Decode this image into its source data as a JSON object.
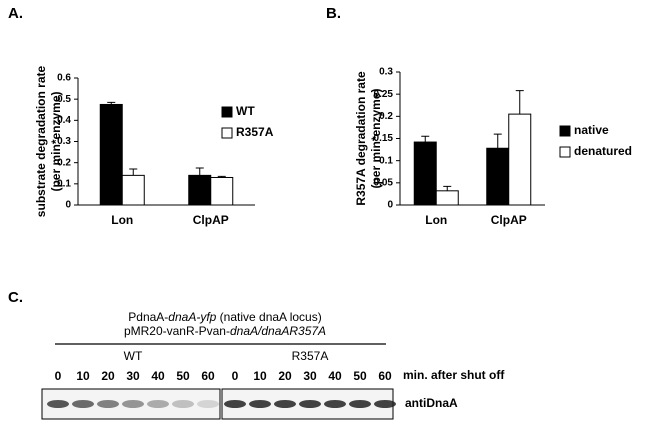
{
  "chart_data": [
    {
      "type": "bar",
      "panel": "A.",
      "ylabel": [
        "substrate degradation rate",
        "(per min*enzyme)"
      ],
      "categories": [
        "Lon",
        "ClpAP"
      ],
      "series": [
        {
          "name": "WT",
          "color": "#000000",
          "values": [
            0.475,
            0.14
          ],
          "errors": [
            0.01,
            0.035
          ]
        },
        {
          "name": "R357A",
          "color": "#ffffff",
          "values": [
            0.14,
            0.13
          ],
          "errors": [
            0.03,
            0.005
          ]
        }
      ],
      "ylim": [
        0,
        0.6
      ],
      "yticks": [
        0,
        0.1,
        0.2,
        0.3,
        0.4,
        0.5,
        0.6
      ],
      "grid": false,
      "legend": "right"
    },
    {
      "type": "bar",
      "panel": "B.",
      "ylabel": [
        "R357A degradation rate",
        "(per min*enzyme)"
      ],
      "categories": [
        "Lon",
        "ClpAP"
      ],
      "series": [
        {
          "name": "native",
          "color": "#000000",
          "values": [
            0.142,
            0.128
          ],
          "errors": [
            0.013,
            0.032
          ]
        },
        {
          "name": "denatured",
          "color": "#ffffff",
          "values": [
            0.032,
            0.205
          ],
          "errors": [
            0.01,
            0.053
          ]
        }
      ],
      "ylim": [
        0,
        0.3
      ],
      "yticks": [
        0,
        0.05,
        0.1,
        0.15,
        0.2,
        0.25,
        0.3
      ],
      "grid": false,
      "legend": "right"
    }
  ],
  "panel_c": {
    "label": "C.",
    "header": [
      [
        "PdnaA-",
        "dnaA-yfp",
        " (native dnaA locus)"
      ],
      [
        "pMR20-vanR-Pvan-",
        "dnaA/dnaAR357A"
      ]
    ],
    "groups": [
      "WT",
      "R357A"
    ],
    "time_points": [
      0,
      10,
      20,
      30,
      40,
      50,
      60
    ],
    "time_label": "min. after shut off",
    "antibody": "antiDnaA"
  }
}
